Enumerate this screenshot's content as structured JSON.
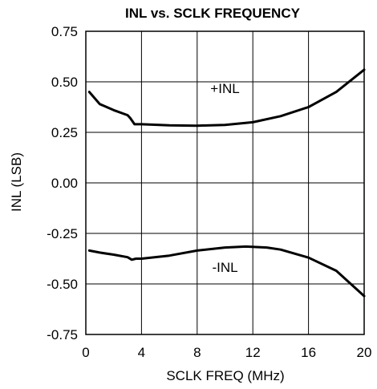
{
  "chart_data": {
    "type": "line",
    "title": "INL vs. SCLK FREQUENCY",
    "xlabel": "SCLK FREQ (MHz)",
    "ylabel": "INL (LSB)",
    "xlim": [
      0,
      20
    ],
    "ylim": [
      -0.75,
      0.75
    ],
    "x_ticks": [
      0,
      4,
      8,
      12,
      16,
      20
    ],
    "y_ticks": [
      0.75,
      0.5,
      0.25,
      0.0,
      -0.25,
      -0.5,
      -0.75
    ],
    "x_tick_labels": [
      "0",
      "4",
      "8",
      "12",
      "16",
      "20"
    ],
    "y_tick_labels": [
      "0.75",
      "0.50",
      "0.25",
      "0.00",
      "-0.25",
      "-0.50",
      "-0.75"
    ],
    "grid": true,
    "annotations": [
      {
        "text": "+INL",
        "x": 10,
        "y": 0.445
      },
      {
        "text": "-INL",
        "x": 10,
        "y": -0.44
      }
    ],
    "series": [
      {
        "name": "+INL",
        "x": [
          0.25,
          1.0,
          2.0,
          3.0,
          3.2,
          3.5,
          4.0,
          6.0,
          8.0,
          10.0,
          12.0,
          14.0,
          16.0,
          18.0,
          20.0
        ],
        "y": [
          0.45,
          0.39,
          0.36,
          0.335,
          0.32,
          0.29,
          0.29,
          0.285,
          0.283,
          0.287,
          0.3,
          0.33,
          0.375,
          0.45,
          0.56
        ]
      },
      {
        "name": "-INL",
        "x": [
          0.25,
          1.0,
          2.0,
          3.0,
          3.3,
          3.6,
          4.0,
          6.0,
          8.0,
          10.0,
          11.5,
          13.0,
          14.0,
          16.0,
          18.0,
          20.0
        ],
        "y": [
          -0.335,
          -0.345,
          -0.355,
          -0.368,
          -0.38,
          -0.375,
          -0.375,
          -0.36,
          -0.335,
          -0.32,
          -0.315,
          -0.32,
          -0.33,
          -0.37,
          -0.435,
          -0.56
        ]
      }
    ]
  }
}
